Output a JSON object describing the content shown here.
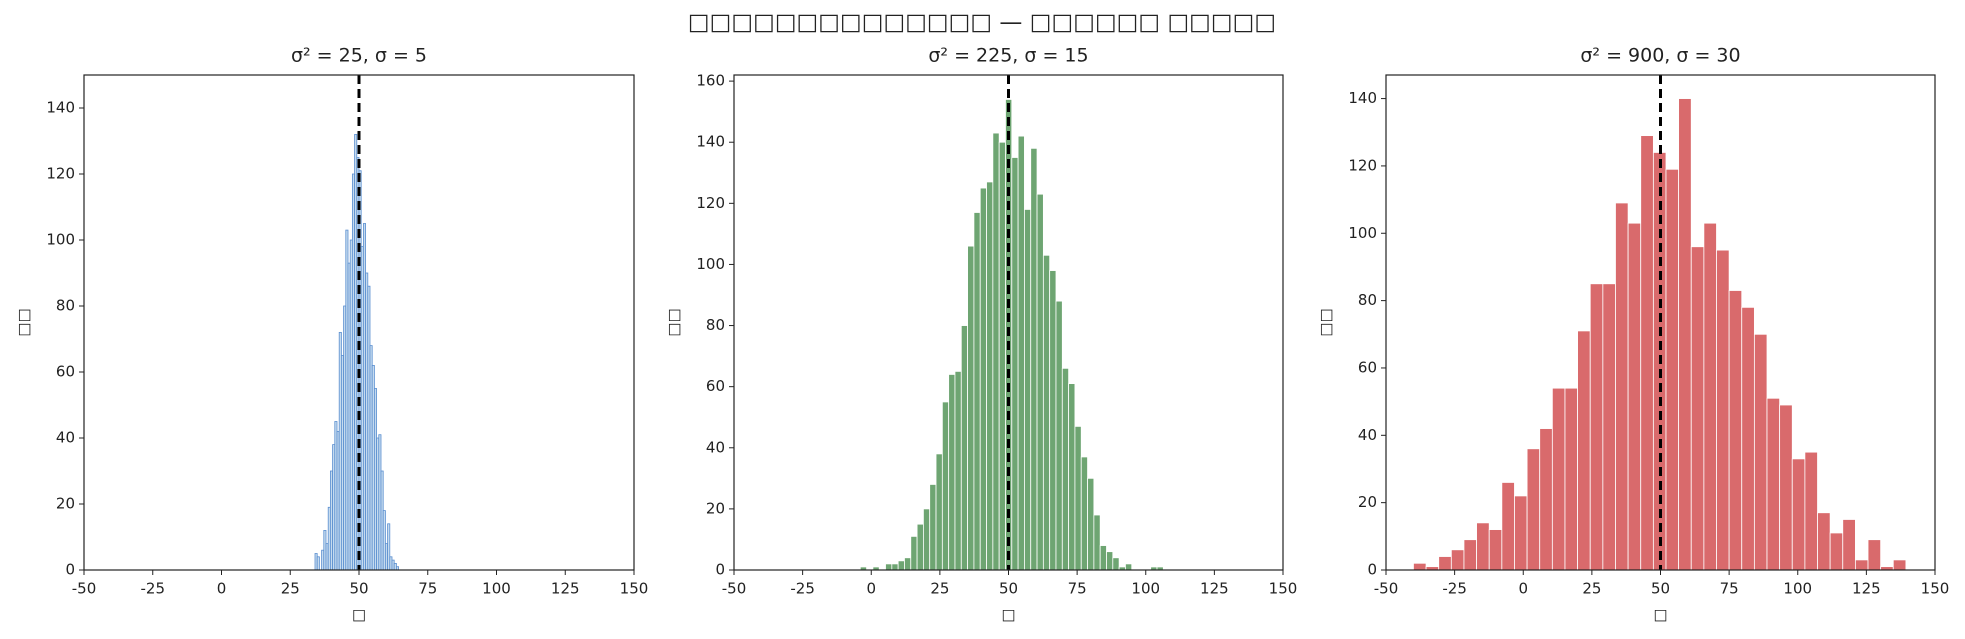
{
  "title": "□□□□□□□□□□□□□□ — □□□□□□ □□□□□",
  "title_color": "#0e5a4a",
  "chart_data": [
    {
      "type": "histogram",
      "title": "σ² = 25, σ = 5",
      "title_color": "#1f6fc4",
      "xlabel": "□",
      "ylabel": "□□",
      "color": "#c6dbef",
      "edgecolor": "#5b8fd0",
      "bins": [
        34,
        34.8,
        35.6,
        36.4,
        37.2,
        38,
        38.8,
        39.6,
        40.4,
        41.2,
        42,
        42.8,
        43.6,
        44.4,
        45.2,
        46,
        46.8,
        47.6,
        48.4,
        49.2,
        50,
        50.8,
        51.6,
        52.4,
        53.2,
        54,
        54.8,
        55.6,
        56.4,
        57.2,
        58,
        58.8,
        59.6,
        60.4,
        61.2,
        62,
        62.8,
        63.6,
        64.4
      ],
      "counts": [
        5,
        4,
        0,
        6,
        12,
        8,
        19,
        30,
        38,
        45,
        42,
        72,
        65,
        80,
        103,
        93,
        100,
        120,
        132,
        125,
        121,
        98,
        105,
        90,
        86,
        68,
        62,
        55,
        40,
        41,
        30,
        18,
        8,
        14,
        4,
        3,
        2,
        1
      ],
      "mean_line": 50,
      "xlim": [
        -50,
        150
      ],
      "xticks": [
        -50,
        -25,
        0,
        25,
        50,
        75,
        100,
        125,
        150
      ],
      "ylim": [
        0,
        150
      ],
      "yticks": [
        0,
        20,
        40,
        60,
        80,
        100,
        120,
        140
      ]
    },
    {
      "type": "histogram",
      "title": "σ² = 225, σ = 15",
      "title_color": "#2e8b2e",
      "xlabel": "□",
      "ylabel": "□□",
      "color": "#6ea572",
      "edgecolor": "#ffffff",
      "bins": [
        -4,
        -1.7,
        0.6,
        2.9,
        5.2,
        7.5,
        9.8,
        12.1,
        14.4,
        16.7,
        19,
        21.3,
        23.6,
        25.9,
        28.2,
        30.5,
        32.8,
        35.1,
        37.4,
        39.7,
        42,
        44.3,
        46.6,
        48.9,
        51.2,
        53.5,
        55.8,
        58.1,
        60.4,
        62.7,
        65,
        67.3,
        69.6,
        71.9,
        74.2,
        76.5,
        78.8,
        81.1,
        83.4,
        85.7,
        88,
        90.3,
        92.6,
        94.9,
        97.2,
        99.5,
        101.8,
        104.1,
        106.4
      ],
      "counts": [
        1,
        0,
        1,
        0,
        2,
        2,
        3,
        4,
        11,
        15,
        20,
        28,
        38,
        55,
        64,
        65,
        80,
        106,
        117,
        125,
        127,
        143,
        140,
        154,
        135,
        142,
        118,
        138,
        123,
        103,
        98,
        88,
        66,
        61,
        47,
        37,
        30,
        18,
        8,
        6,
        4,
        1,
        2,
        0,
        0,
        0,
        1,
        1
      ],
      "mean_line": 50,
      "xlim": [
        -50,
        150
      ],
      "xticks": [
        -50,
        -25,
        0,
        25,
        50,
        75,
        100,
        125,
        150
      ],
      "ylim": [
        0,
        162
      ],
      "yticks": [
        0,
        20,
        40,
        60,
        80,
        100,
        120,
        140,
        160
      ]
    },
    {
      "type": "histogram",
      "title": "σ² = 900, σ = 30",
      "title_color": "#cc2222",
      "xlabel": "□",
      "ylabel": "□□",
      "color": "#d96a6c",
      "edgecolor": "#ffffff",
      "bins": [
        -40,
        -35.4,
        -30.8,
        -26.2,
        -21.6,
        -17,
        -12.4,
        -7.8,
        -3.2,
        1.4,
        6,
        10.6,
        15.2,
        19.8,
        24.4,
        29,
        33.6,
        38.2,
        42.8,
        47.4,
        52,
        56.6,
        61.2,
        65.8,
        70.4,
        75,
        79.6,
        84.2,
        88.8,
        93.4,
        98,
        102.6,
        107.2,
        111.8,
        116.4,
        121,
        125.6,
        130.2,
        134.8,
        139.4
      ],
      "counts": [
        2,
        1,
        4,
        6,
        9,
        14,
        12,
        26,
        22,
        36,
        42,
        54,
        54,
        71,
        85,
        85,
        109,
        103,
        129,
        124,
        119,
        140,
        96,
        103,
        95,
        83,
        78,
        70,
        51,
        49,
        33,
        35,
        17,
        11,
        15,
        3,
        9,
        1,
        3
      ],
      "mean_line": 50,
      "xlim": [
        -50,
        150
      ],
      "xticks": [
        -50,
        -25,
        0,
        25,
        50,
        75,
        100,
        125,
        150
      ],
      "ylim": [
        0,
        147
      ],
      "yticks": [
        0,
        20,
        40,
        60,
        80,
        100,
        120,
        140
      ]
    }
  ]
}
